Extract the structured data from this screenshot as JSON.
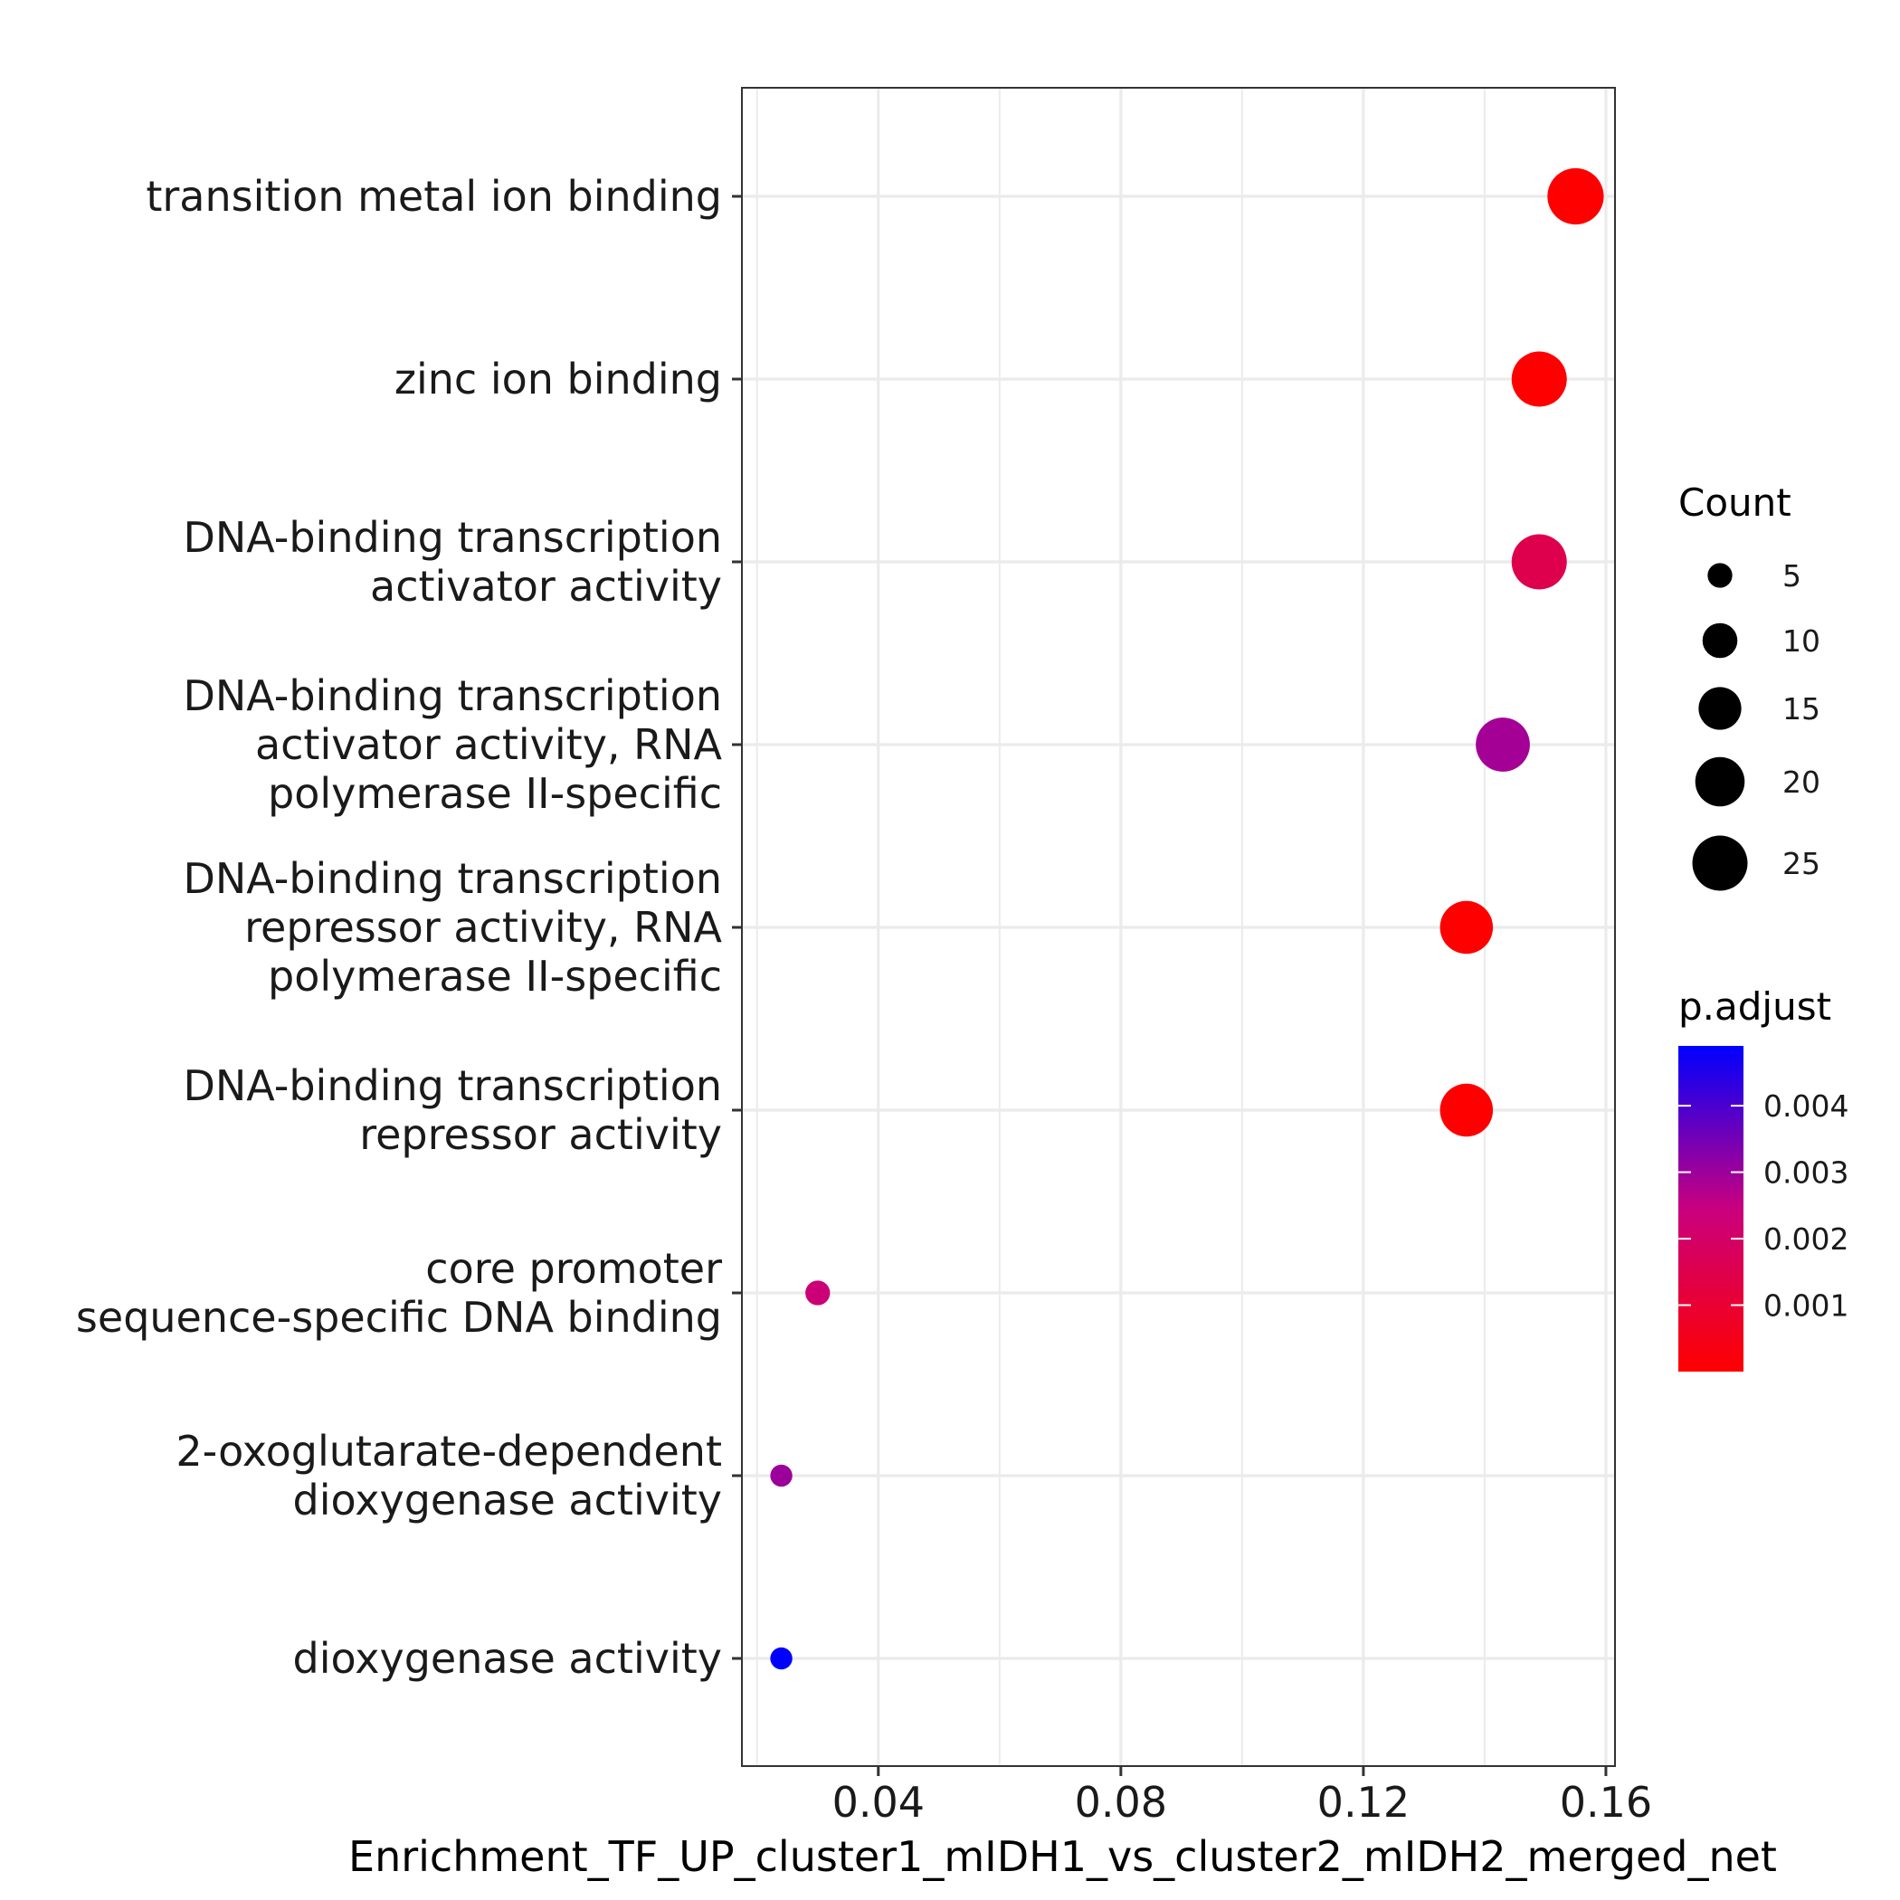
{
  "chart_data": {
    "type": "scatter",
    "xlabel": "Enrichment_TF_UP_cluster1_mIDH1_vs_cluster2_mIDH2_merged_net",
    "xlim": [
      0.0175,
      0.1615
    ],
    "x_ticks": [
      "0.04",
      "0.08",
      "0.12",
      "0.16"
    ],
    "x_tick_values": [
      0.04,
      0.08,
      0.12,
      0.16
    ],
    "x_minor_ticks": [
      0.02,
      0.06,
      0.1,
      0.14
    ],
    "grid": true,
    "points": [
      {
        "lines": [
          "transition metal ion binding"
        ],
        "x": 0.155,
        "count": 26,
        "p_adjust": 0.0
      },
      {
        "lines": [
          "zinc ion binding"
        ],
        "x": 0.149,
        "count": 25,
        "p_adjust": 0.0
      },
      {
        "lines": [
          "DNA-binding transcription",
          "activator activity"
        ],
        "x": 0.149,
        "count": 25,
        "p_adjust": 0.0015
      },
      {
        "lines": [
          "DNA-binding transcription",
          "activator activity, RNA",
          "polymerase II-specific"
        ],
        "x": 0.143,
        "count": 24,
        "p_adjust": 0.0029
      },
      {
        "lines": [
          "DNA-binding transcription",
          "repressor activity, RNA",
          "polymerase II-specific"
        ],
        "x": 0.137,
        "count": 23,
        "p_adjust": 0.0
      },
      {
        "lines": [
          "DNA-binding transcription",
          "repressor activity"
        ],
        "x": 0.137,
        "count": 23,
        "p_adjust": 0.0
      },
      {
        "lines": [
          "core promoter",
          "sequence-specific DNA binding"
        ],
        "x": 0.03,
        "count": 5,
        "p_adjust": 0.0023
      },
      {
        "lines": [
          "2-oxoglutarate-dependent",
          "dioxygenase activity"
        ],
        "x": 0.024,
        "count": 4,
        "p_adjust": 0.003
      },
      {
        "lines": [
          "dioxygenase activity"
        ],
        "x": 0.024,
        "count": 4,
        "p_adjust": 0.0049
      }
    ],
    "legend_size": {
      "title": "Count",
      "labels": [
        "5",
        "10",
        "15",
        "20",
        "25"
      ],
      "values": [
        5,
        10,
        15,
        20,
        25
      ]
    },
    "legend_color": {
      "title": "p.adjust",
      "labels": [
        "0.004",
        "0.003",
        "0.002",
        "0.001"
      ],
      "values": [
        0.004,
        0.003,
        0.002,
        0.001
      ],
      "range": [
        0.0,
        0.0049
      ],
      "low_color": "#ff0000",
      "high_color": "#0000ff"
    },
    "legend_position": "right"
  }
}
